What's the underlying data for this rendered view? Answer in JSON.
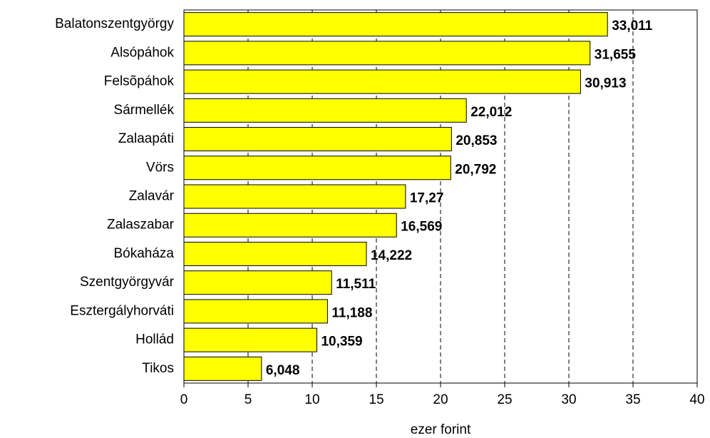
{
  "chart_data": {
    "type": "bar",
    "orientation": "horizontal",
    "x_label": "ezer forint",
    "categories": [
      "Balatonszentgyörgy",
      "Alsópáhok",
      "Felsõpáhok",
      "Sármellék",
      "Zalaapáti",
      "Vörs",
      "Zalavár",
      "Zalaszabar",
      "Bókaháza",
      "Szentgyörgyvár",
      "Esztergályhorváti",
      "Hollád",
      "Tikos"
    ],
    "values": [
      33.011,
      31.655,
      30.913,
      22.012,
      20.853,
      20.792,
      17.27,
      16.569,
      14.222,
      11.511,
      11.188,
      10.359,
      6.048
    ],
    "value_labels": [
      "33,011",
      "31,655",
      "30,913",
      "22,012",
      "20,853",
      "20,792",
      "17,27",
      "16,569",
      "14,222",
      "11,511",
      "11,188",
      "10,359",
      "6,048"
    ],
    "color": "#ffff00",
    "xlim": [
      0,
      40
    ],
    "xticks": [
      0,
      5,
      10,
      15,
      20,
      25,
      30,
      35,
      40
    ],
    "grid": true
  }
}
